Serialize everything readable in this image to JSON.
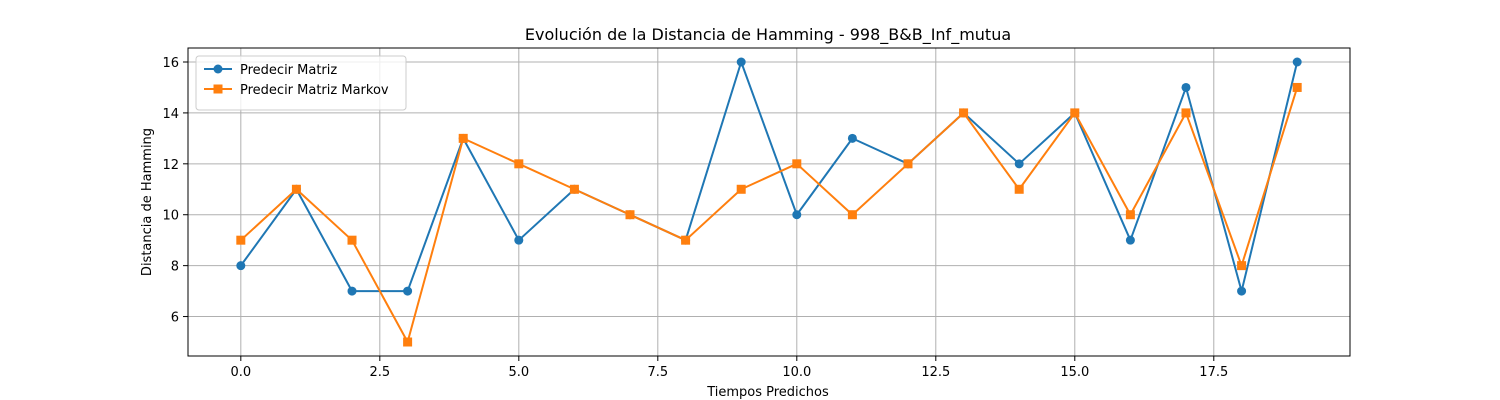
{
  "chart_data": {
    "type": "line",
    "title": "Evolución de la Distancia de Hamming - 998_B&B_Inf_mutua",
    "xlabel": "Tiempos Predichos",
    "ylabel": "Distancia de Hamming",
    "x": [
      0,
      1,
      2,
      3,
      4,
      5,
      6,
      7,
      8,
      9,
      10,
      11,
      12,
      13,
      14,
      15,
      16,
      17,
      18,
      19
    ],
    "xlim": [
      -0.95,
      19.95
    ],
    "ylim": [
      4.45,
      16.55
    ],
    "xticks": [
      0.0,
      2.5,
      5.0,
      7.5,
      10.0,
      12.5,
      15.0,
      17.5
    ],
    "xtick_labels": [
      "0.0",
      "2.5",
      "5.0",
      "7.5",
      "10.0",
      "12.5",
      "15.0",
      "17.5"
    ],
    "yticks": [
      6,
      8,
      10,
      12,
      14,
      16
    ],
    "ytick_labels": [
      "6",
      "8",
      "10",
      "12",
      "14",
      "16"
    ],
    "grid": true,
    "legend_position": "top-left",
    "series": [
      {
        "name": "Predecir Matriz",
        "color": "#1f77b4",
        "marker": "circle",
        "values": [
          8,
          11,
          7,
          7,
          13,
          9,
          11,
          10,
          9,
          16,
          10,
          13,
          12,
          14,
          12,
          14,
          9,
          15,
          7,
          16
        ]
      },
      {
        "name": "Predecir Matriz Markov",
        "color": "#ff7f0e",
        "marker": "square",
        "values": [
          9,
          11,
          9,
          5,
          13,
          12,
          11,
          10,
          9,
          11,
          12,
          10,
          12,
          14,
          11,
          14,
          10,
          14,
          8,
          15
        ]
      }
    ]
  }
}
